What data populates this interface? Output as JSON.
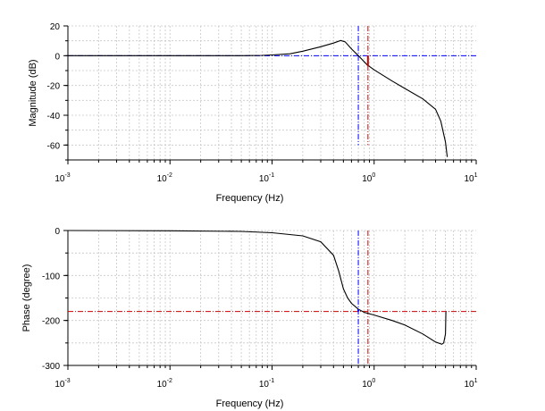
{
  "colors": {
    "curve": "#000000",
    "gain_crossover": "#0000ff",
    "phase_crossover": "#cc0000",
    "grid": "#c8c8c8"
  },
  "chart_data": [
    {
      "type": "line",
      "xlabel": "Frequency (Hz)",
      "ylabel": "Magnitude (dB)",
      "xscale": "log",
      "xlim": [
        0.001,
        10
      ],
      "ylim": [
        -70,
        20
      ],
      "grid": true,
      "xticks": [
        {
          "base": "10",
          "exp": "-3",
          "value": 0.001
        },
        {
          "base": "10",
          "exp": "-2",
          "value": 0.01
        },
        {
          "base": "10",
          "exp": "-1",
          "value": 0.1
        },
        {
          "base": "10",
          "exp": "0",
          "value": 1
        },
        {
          "base": "10",
          "exp": "1",
          "value": 10
        }
      ],
      "yticks": [
        "20",
        "0",
        "-20",
        "-40",
        "-60"
      ],
      "ytick_values": [
        20,
        0,
        -20,
        -40,
        -60
      ],
      "series": [
        {
          "x": [
            0.001,
            0.01,
            0.05,
            0.08,
            0.1,
            0.15,
            0.2,
            0.3,
            0.4,
            0.47,
            0.52,
            0.6,
            0.7,
            0.85,
            1.0,
            1.5,
            2.0,
            3.0,
            4.0,
            4.5,
            5.0,
            5.2
          ],
          "y": [
            0,
            0,
            0,
            0.2,
            0.5,
            1.3,
            3.0,
            6.0,
            8.5,
            10.2,
            9.3,
            4.5,
            0,
            -6,
            -9.5,
            -17,
            -22,
            -29,
            -36,
            -44,
            -58,
            -68
          ]
        }
      ],
      "reference_lines": [
        {
          "orientation": "horizontal",
          "value": 0,
          "color": "blue",
          "style": "dashdot"
        },
        {
          "orientation": "vertical",
          "value": 0.7,
          "color": "blue",
          "style": "dashdot",
          "range": [
            -60,
            20
          ]
        },
        {
          "orientation": "vertical",
          "value": 0.87,
          "color": "red",
          "style": "dashdot",
          "range": [
            -60,
            20
          ]
        }
      ]
    },
    {
      "type": "line",
      "xlabel": "Frequency (Hz)",
      "ylabel": "Phase (degree)",
      "xscale": "log",
      "xlim": [
        0.001,
        10
      ],
      "ylim": [
        -300,
        0
      ],
      "grid": true,
      "xticks": [
        {
          "base": "10",
          "exp": "-3",
          "value": 0.001
        },
        {
          "base": "10",
          "exp": "-2",
          "value": 0.01
        },
        {
          "base": "10",
          "exp": "-1",
          "value": 0.1
        },
        {
          "base": "10",
          "exp": "0",
          "value": 1
        },
        {
          "base": "10",
          "exp": "1",
          "value": 10
        }
      ],
      "yticks": [
        "0",
        "-100",
        "-200",
        "-300"
      ],
      "ytick_values": [
        0,
        -100,
        -200,
        -300
      ],
      "series": [
        {
          "x": [
            0.001,
            0.01,
            0.05,
            0.1,
            0.2,
            0.3,
            0.4,
            0.45,
            0.5,
            0.55,
            0.6,
            0.7,
            0.8,
            1.0,
            1.5,
            2.0,
            3.0,
            4.0,
            4.6,
            4.8,
            5.0,
            5.05
          ],
          "y": [
            0,
            -0.5,
            -2,
            -5,
            -12,
            -25,
            -55,
            -90,
            -130,
            -150,
            -162,
            -175,
            -182,
            -188,
            -200,
            -210,
            -230,
            -248,
            -253,
            -250,
            -230,
            -180
          ]
        }
      ],
      "reference_lines": [
        {
          "orientation": "horizontal",
          "value": -180,
          "color": "red",
          "style": "dashdot"
        },
        {
          "orientation": "vertical",
          "value": 0.7,
          "color": "blue",
          "style": "dashdot",
          "range": [
            -300,
            0
          ]
        },
        {
          "orientation": "vertical",
          "value": 0.87,
          "color": "red",
          "style": "dashdot",
          "range": [
            -300,
            0
          ]
        }
      ]
    }
  ]
}
